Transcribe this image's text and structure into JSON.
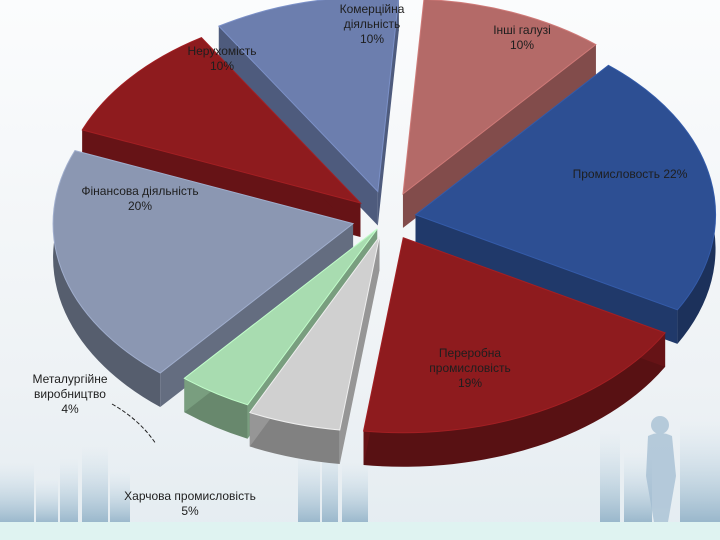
{
  "chart_data": {
    "type": "pie",
    "title": "",
    "slices": [
      {
        "name": "Промисловость",
        "value": 22,
        "label_text": "Промисловость 22%",
        "color": "#2d4f93"
      },
      {
        "name": "Переробна промисловість",
        "value": 19,
        "label_lines": [
          "Переробна",
          "промисловість",
          "19%"
        ],
        "color": "#8e1b1e"
      },
      {
        "name": "Харчова промисловість",
        "value": 5,
        "label_lines": [
          "Харчова промисловість",
          "5%"
        ],
        "color": "#d0d0d0"
      },
      {
        "name": "Металургійне виробництво",
        "value": 4,
        "label_lines": [
          "Металургійне",
          "виробництво",
          "4%"
        ],
        "color": "#a8dcb0"
      },
      {
        "name": "Фінансова діяльність",
        "value": 20,
        "label_lines": [
          "Фінансова діяльність",
          "20%"
        ],
        "color": "#8b97b2"
      },
      {
        "name": "Нерухомість",
        "value": 10,
        "label_lines": [
          "Нерухомість",
          "10%"
        ],
        "color": "#8e1b1e"
      },
      {
        "name": "Комерційна діяльність",
        "value": 10,
        "label_lines": [
          "Комерційна",
          "діяльність",
          "10%"
        ],
        "color": "#6c7eae"
      },
      {
        "name": "Інші галузі",
        "value": 10,
        "label_lines": [
          "Інші галузі",
          "10%"
        ],
        "color": "#b46a68"
      }
    ]
  }
}
